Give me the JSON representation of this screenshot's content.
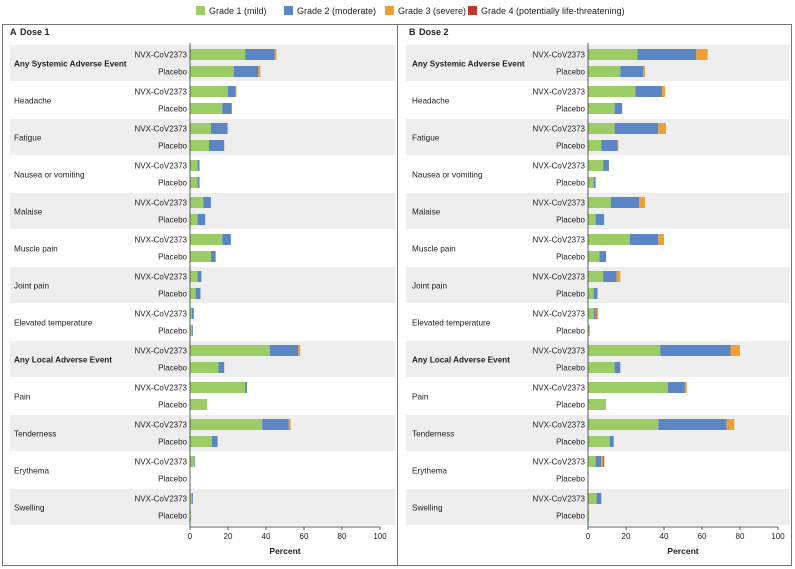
{
  "legend": [
    {
      "label": "Grade 1 (mild)",
      "color": "#9ccc65"
    },
    {
      "label": "Grade 2 (moderate)",
      "color": "#5b86c5"
    },
    {
      "label": "Grade 3 (severe)",
      "color": "#f0a030"
    },
    {
      "label": "Grade 4 (potentially life-threatening)",
      "color": "#c0392b"
    }
  ],
  "chart_data": [
    {
      "type": "bar",
      "orientation": "horizontal-stacked",
      "panel": "A",
      "title": "Dose 1",
      "xlabel": "Percent",
      "xlim": [
        0,
        100
      ],
      "xticks": [
        0,
        20,
        40,
        60,
        80,
        100
      ],
      "series": [
        "Grade 1 (mild)",
        "Grade 2 (moderate)",
        "Grade 3 (severe)",
        "Grade 4 (potentially life-threatening)"
      ],
      "groups": [
        {
          "label": "Any Systemic Adverse Event",
          "bold": true,
          "rows": [
            {
              "label": "NVX-CoV2373",
              "values": [
                29,
                15.5,
                1,
                0
              ]
            },
            {
              "label": "Placebo",
              "values": [
                23,
                13,
                1,
                0
              ]
            }
          ]
        },
        {
          "label": "Headache",
          "bold": false,
          "rows": [
            {
              "label": "NVX-CoV2373",
              "values": [
                20,
                4,
                0.5,
                0
              ]
            },
            {
              "label": "Placebo",
              "values": [
                17,
                5,
                0,
                0
              ]
            }
          ]
        },
        {
          "label": "Fatigue",
          "bold": false,
          "rows": [
            {
              "label": "NVX-CoV2373",
              "values": [
                11,
                8.5,
                0.5,
                0
              ]
            },
            {
              "label": "Placebo",
              "values": [
                10,
                8,
                0,
                0
              ]
            }
          ]
        },
        {
          "label": "Nausea or vomiting",
          "bold": false,
          "rows": [
            {
              "label": "NVX-CoV2373",
              "values": [
                4,
                1,
                0,
                0
              ]
            },
            {
              "label": "Placebo",
              "values": [
                4,
                1,
                0,
                0
              ]
            }
          ]
        },
        {
          "label": "Malaise",
          "bold": false,
          "rows": [
            {
              "label": "NVX-CoV2373",
              "values": [
                7,
                4,
                0,
                0
              ]
            },
            {
              "label": "Placebo",
              "values": [
                4,
                4,
                0,
                0
              ]
            }
          ]
        },
        {
          "label": "Muscle pain",
          "bold": false,
          "rows": [
            {
              "label": "NVX-CoV2373",
              "values": [
                17,
                4.5,
                0,
                0
              ]
            },
            {
              "label": "Placebo",
              "values": [
                11,
                2.5,
                0,
                0
              ]
            }
          ]
        },
        {
          "label": "Joint pain",
          "bold": false,
          "rows": [
            {
              "label": "NVX-CoV2373",
              "values": [
                4,
                2,
                0,
                0
              ]
            },
            {
              "label": "Placebo",
              "values": [
                3,
                2.5,
                0,
                0
              ]
            }
          ]
        },
        {
          "label": "Elevated temperature",
          "bold": false,
          "rows": [
            {
              "label": "NVX-CoV2373",
              "values": [
                1,
                1,
                0,
                0
              ]
            },
            {
              "label": "Placebo",
              "values": [
                1,
                0.5,
                0,
                0
              ]
            }
          ]
        },
        {
          "label": "Any Local Adverse Event",
          "bold": true,
          "rows": [
            {
              "label": "NVX-CoV2373",
              "values": [
                42,
                15,
                1,
                0
              ]
            },
            {
              "label": "Placebo",
              "values": [
                15,
                3,
                0,
                0
              ]
            }
          ]
        },
        {
          "label": "Pain",
          "bold": false,
          "rows": [
            {
              "label": "NVX-CoV2373",
              "values": [
                29,
                1,
                0,
                0
              ]
            },
            {
              "label": "Placebo",
              "values": [
                9,
                0,
                0,
                0
              ]
            }
          ]
        },
        {
          "label": "Tenderness",
          "bold": false,
          "rows": [
            {
              "label": "NVX-CoV2373",
              "values": [
                38,
                14,
                1,
                0
              ]
            },
            {
              "label": "Placebo",
              "values": [
                11.5,
                3,
                0,
                0
              ]
            }
          ]
        },
        {
          "label": "Erythema",
          "bold": false,
          "rows": [
            {
              "label": "NVX-CoV2373",
              "values": [
                2,
                0.5,
                0,
                0
              ]
            },
            {
              "label": "Placebo",
              "values": [
                0,
                0,
                0,
                0
              ]
            }
          ]
        },
        {
          "label": "Swelling",
          "bold": false,
          "rows": [
            {
              "label": "NVX-CoV2373",
              "values": [
                1,
                0.5,
                0,
                0
              ]
            },
            {
              "label": "Placebo",
              "values": [
                0.5,
                0,
                0,
                0
              ]
            }
          ]
        }
      ]
    },
    {
      "type": "bar",
      "orientation": "horizontal-stacked",
      "panel": "B",
      "title": "Dose 2",
      "xlabel": "Percent",
      "xlim": [
        0,
        100
      ],
      "xticks": [
        0,
        20,
        40,
        60,
        80,
        100
      ],
      "series": [
        "Grade 1 (mild)",
        "Grade 2 (moderate)",
        "Grade 3 (severe)",
        "Grade 4 (potentially life-threatening)"
      ],
      "groups": [
        {
          "label": "Any Systemic Adverse Event",
          "bold": true,
          "rows": [
            {
              "label": "NVX-CoV2373",
              "values": [
                26,
                31,
                6,
                0
              ]
            },
            {
              "label": "Placebo",
              "values": [
                17,
                12,
                1,
                0
              ]
            }
          ]
        },
        {
          "label": "Headache",
          "bold": false,
          "rows": [
            {
              "label": "NVX-CoV2373",
              "values": [
                25,
                14,
                1.5,
                0
              ]
            },
            {
              "label": "Placebo",
              "values": [
                14,
                4,
                0,
                0
              ]
            }
          ]
        },
        {
          "label": "Fatigue",
          "bold": false,
          "rows": [
            {
              "label": "NVX-CoV2373",
              "values": [
                14,
                23,
                4,
                0
              ]
            },
            {
              "label": "Placebo",
              "values": [
                7,
                8.5,
                0.5,
                0
              ]
            }
          ]
        },
        {
          "label": "Nausea or vomiting",
          "bold": false,
          "rows": [
            {
              "label": "NVX-CoV2373",
              "values": [
                8,
                3,
                0,
                0
              ]
            },
            {
              "label": "Placebo",
              "values": [
                3,
                1,
                0,
                0
              ]
            }
          ]
        },
        {
          "label": "Malaise",
          "bold": false,
          "rows": [
            {
              "label": "NVX-CoV2373",
              "values": [
                12,
                15,
                3,
                0
              ]
            },
            {
              "label": "Placebo",
              "values": [
                4,
                4.5,
                0,
                0
              ]
            }
          ]
        },
        {
          "label": "Muscle pain",
          "bold": false,
          "rows": [
            {
              "label": "NVX-CoV2373",
              "values": [
                22,
                15,
                3,
                0
              ]
            },
            {
              "label": "Placebo",
              "values": [
                6,
                3.5,
                0,
                0
              ]
            }
          ]
        },
        {
          "label": "Joint pain",
          "bold": false,
          "rows": [
            {
              "label": "NVX-CoV2373",
              "values": [
                8,
                7,
                2,
                0
              ]
            },
            {
              "label": "Placebo",
              "values": [
                3,
                2,
                0,
                0
              ]
            }
          ]
        },
        {
          "label": "Elevated temperature",
          "bold": false,
          "rows": [
            {
              "label": "NVX-CoV2373",
              "values": [
                3,
                1,
                0.5,
                0.5
              ]
            },
            {
              "label": "Placebo",
              "values": [
                1,
                0,
                0,
                0
              ]
            }
          ]
        },
        {
          "label": "Any Local Adverse Event",
          "bold": true,
          "rows": [
            {
              "label": "NVX-CoV2373",
              "values": [
                38,
                37,
                5,
                0
              ]
            },
            {
              "label": "Placebo",
              "values": [
                14,
                3,
                0,
                0
              ]
            }
          ]
        },
        {
          "label": "Pain",
          "bold": false,
          "rows": [
            {
              "label": "NVX-CoV2373",
              "values": [
                42,
                9,
                1,
                0
              ]
            },
            {
              "label": "Placebo",
              "values": [
                9.5,
                0,
                0,
                0
              ]
            }
          ]
        },
        {
          "label": "Tenderness",
          "bold": false,
          "rows": [
            {
              "label": "NVX-CoV2373",
              "values": [
                37,
                36,
                4,
                0
              ]
            },
            {
              "label": "Placebo",
              "values": [
                11.5,
                2,
                0,
                0
              ]
            }
          ]
        },
        {
          "label": "Erythema",
          "bold": false,
          "rows": [
            {
              "label": "NVX-CoV2373",
              "values": [
                4,
                3,
                1,
                0.5
              ]
            },
            {
              "label": "Placebo",
              "values": [
                0,
                0,
                0,
                0
              ]
            }
          ]
        },
        {
          "label": "Swelling",
          "bold": false,
          "rows": [
            {
              "label": "NVX-CoV2373",
              "values": [
                4.5,
                2.5,
                0,
                0
              ]
            },
            {
              "label": "Placebo",
              "values": [
                0.5,
                0,
                0,
                0
              ]
            }
          ]
        }
      ]
    }
  ]
}
